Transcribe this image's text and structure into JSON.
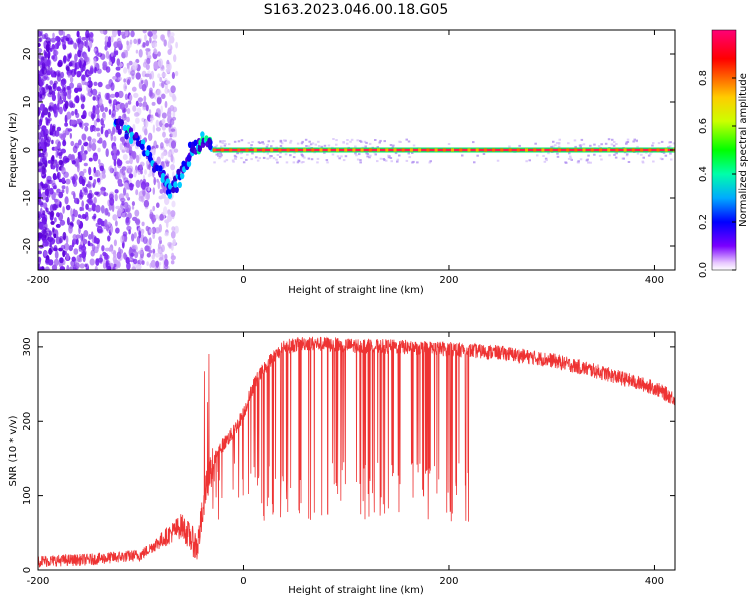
{
  "title": "S163.2023.046.00.18.G05",
  "chart_data": [
    {
      "type": "heatmap",
      "xlabel": "Height of straight line (km)",
      "ylabel": "Frequency (Hz)",
      "xlim": [
        -200,
        420
      ],
      "ylim": [
        -25,
        25
      ],
      "x_ticks": [
        -200,
        0,
        200,
        400
      ],
      "y_ticks": [
        -20,
        -10,
        0,
        10,
        20
      ],
      "colorbar": {
        "label": "Normalized spectral amplitude",
        "range": [
          0,
          1
        ],
        "ticks": [
          0.0,
          0.2,
          0.4,
          0.6,
          0.8
        ],
        "colormap": [
          "#ffffff",
          "#4a00e0",
          "#0000ff",
          "#00ccff",
          "#00ff00",
          "#ffff00",
          "#ff6600",
          "#ff0000",
          "#ff0066"
        ]
      },
      "features": {
        "carrier_line": {
          "frequency": 0,
          "x_range": [
            -30,
            420
          ],
          "amplitude": 0.95
        },
        "noise_region_x": [
          -200,
          -90
        ],
        "transition_track": [
          {
            "x": -125,
            "y": 6
          },
          {
            "x": -110,
            "y": 3
          },
          {
            "x": -95,
            "y": 0
          },
          {
            "x": -80,
            "y": -5
          },
          {
            "x": -70,
            "y": -9
          },
          {
            "x": -60,
            "y": -4
          },
          {
            "x": -50,
            "y": 0
          },
          {
            "x": -40,
            "y": 2
          },
          {
            "x": -30,
            "y": 0
          }
        ]
      }
    },
    {
      "type": "line",
      "xlabel": "Height of straight line (km)",
      "ylabel": "SNR (10 * v/v)",
      "xlim": [
        -200,
        420
      ],
      "ylim": [
        0,
        320
      ],
      "x_ticks": [
        -200,
        0,
        200,
        400
      ],
      "y_ticks": [
        0,
        100,
        200,
        300
      ],
      "color": "#ee3333",
      "series": [
        {
          "x": [
            -200,
            -150,
            -100,
            -80,
            -60,
            -45,
            -35,
            -25,
            -10,
            0,
            10,
            25,
            40,
            60,
            100,
            150,
            200,
            250,
            300,
            350,
            400,
            420
          ],
          "values": [
            12,
            14,
            20,
            40,
            60,
            30,
            120,
            160,
            185,
            210,
            250,
            280,
            300,
            305,
            302,
            300,
            297,
            292,
            282,
            265,
            245,
            230
          ]
        }
      ],
      "dropout_region_x": [
        -35,
        220
      ],
      "dropout_floor": 65,
      "spike_max": 310
    }
  ]
}
